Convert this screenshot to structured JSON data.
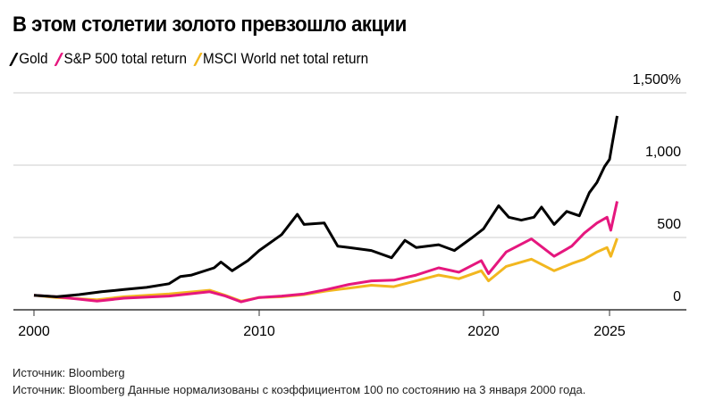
{
  "chart_data": {
    "type": "line",
    "title": "В этом столетии золото превзошло акции",
    "xlabel": "",
    "ylabel": "",
    "ylim": [
      0,
      1500
    ],
    "yticks": [
      {
        "v": 0,
        "label": "0"
      },
      {
        "v": 500,
        "label": "500"
      },
      {
        "v": 1000,
        "label": "1,000"
      },
      {
        "v": 1500,
        "label": "1,500%"
      }
    ],
    "xticks": [
      {
        "v": 2000,
        "label": "2000"
      },
      {
        "v": 2010,
        "label": "2010"
      },
      {
        "v": 2020,
        "label": "2020"
      },
      {
        "v": 2025,
        "label": "2025"
      }
    ],
    "grid": true,
    "legend": "top-left",
    "series": [
      {
        "name": "Gold",
        "color": "#000000",
        "x": [
          2000,
          2001,
          2002,
          2003,
          2004,
          2005,
          2006,
          2006.5,
          2007,
          2008,
          2008.3,
          2008.8,
          2009.5,
          2010,
          2011,
          2011.7,
          2012,
          2012.9,
          2013.5,
          2014,
          2015,
          2015.9,
          2016.5,
          2017,
          2018,
          2018.7,
          2019.5,
          2020,
          2020.6,
          2021,
          2021.5,
          2022,
          2022.3,
          2022.8,
          2023.3,
          2023.8,
          2024.2,
          2024.5,
          2024.8,
          2025,
          2025.1,
          2025.3
        ],
        "y": [
          100,
          90,
          105,
          125,
          140,
          155,
          180,
          230,
          240,
          290,
          330,
          270,
          340,
          410,
          520,
          660,
          590,
          600,
          440,
          430,
          410,
          360,
          480,
          430,
          450,
          410,
          500,
          560,
          720,
          640,
          620,
          640,
          710,
          590,
          680,
          650,
          810,
          880,
          990,
          1040,
          1140,
          1340
        ]
      },
      {
        "name": "S&P 500 total return",
        "color": "#e5177e",
        "x": [
          2000,
          2001,
          2002.8,
          2004,
          2006,
          2007.8,
          2008.5,
          2009.2,
          2010,
          2011,
          2012,
          2013,
          2014,
          2015,
          2016,
          2017,
          2018,
          2018.9,
          2019.9,
          2020.2,
          2020.9,
          2021.9,
          2022.8,
          2023.5,
          2024,
          2024.5,
          2024.9,
          2025.05,
          2025.3
        ],
        "y": [
          100,
          90,
          60,
          80,
          95,
          125,
          95,
          55,
          85,
          95,
          110,
          140,
          175,
          200,
          205,
          240,
          290,
          260,
          340,
          250,
          400,
          490,
          370,
          440,
          530,
          600,
          640,
          550,
          750
        ]
      },
      {
        "name": "MSCI World net total return",
        "color": "#f2b71f",
        "x": [
          2000,
          2001,
          2002.8,
          2004,
          2006,
          2007.8,
          2008.5,
          2009.2,
          2010,
          2011,
          2012,
          2013,
          2014,
          2015,
          2016,
          2017,
          2018,
          2018.9,
          2019.9,
          2020.2,
          2020.9,
          2021.9,
          2022.8,
          2023.5,
          2024,
          2024.5,
          2024.9,
          2025.05,
          2025.3
        ],
        "y": [
          100,
          85,
          70,
          90,
          110,
          135,
          100,
          60,
          85,
          90,
          105,
          130,
          150,
          170,
          160,
          200,
          240,
          215,
          270,
          200,
          300,
          350,
          270,
          320,
          350,
          400,
          430,
          370,
          494
        ]
      }
    ]
  },
  "sources": [
    "Источник: Bloomberg",
    "Источник: Bloomberg Данные нормализованы с коэффициентом 100 по состоянию на 3 января 2000 года."
  ]
}
